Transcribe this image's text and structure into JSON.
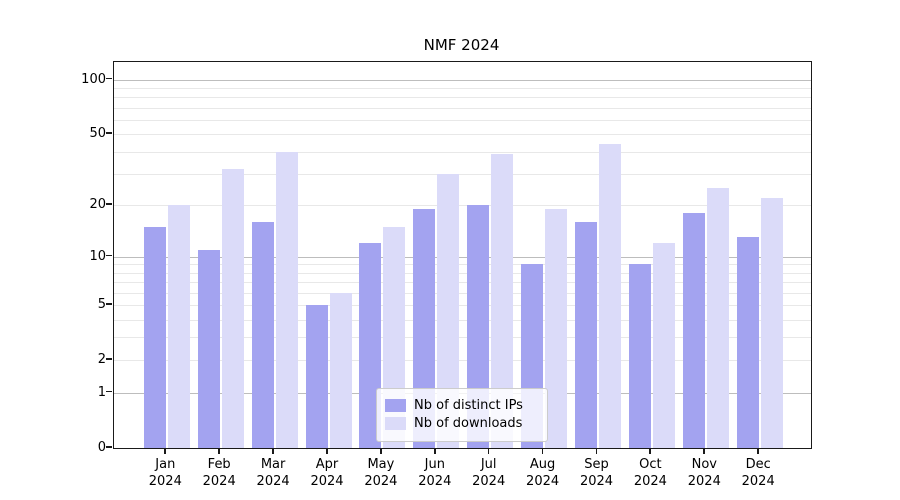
{
  "title": "NMF 2024",
  "chart_data": {
    "type": "bar",
    "title": "NMF 2024",
    "scale": "log1p",
    "categories": [
      "Jan 2024",
      "Feb 2024",
      "Mar 2024",
      "Apr 2024",
      "May 2024",
      "Jun 2024",
      "Jul 2024",
      "Aug 2024",
      "Sep 2024",
      "Oct 2024",
      "Nov 2024",
      "Dec 2024"
    ],
    "month_labels": [
      "Jan",
      "Feb",
      "Mar",
      "Apr",
      "May",
      "Jun",
      "Jul",
      "Aug",
      "Sep",
      "Oct",
      "Nov",
      "Dec"
    ],
    "year_label": "2024",
    "series": [
      {
        "name": "Nb of distinct IPs",
        "color": "#a3a3f0",
        "values": [
          15,
          11,
          16,
          5,
          12,
          19,
          20,
          9,
          16,
          9,
          18,
          13
        ]
      },
      {
        "name": "Nb of downloads",
        "color": "#dbdbf9",
        "values": [
          20,
          32,
          40,
          6,
          15,
          30,
          39,
          19,
          44,
          12,
          25,
          22
        ]
      }
    ],
    "ylim": [
      0,
      125
    ],
    "yticks": [
      100,
      50,
      20,
      10,
      5,
      2,
      1,
      0
    ],
    "grid_major": [
      1,
      10,
      100
    ],
    "grid_minor": [
      2,
      3,
      4,
      5,
      6,
      7,
      8,
      9,
      20,
      30,
      40,
      50,
      60,
      70,
      80,
      90
    ],
    "legend_position": "lower center",
    "grid": "on",
    "xlabel": "",
    "ylabel": ""
  },
  "legend": {
    "items": [
      {
        "label": "Nb of distinct IPs",
        "color": "#a3a3f0"
      },
      {
        "label": "Nb of downloads",
        "color": "#dbdbf9"
      }
    ]
  },
  "colors": {
    "spine": "#1a1a1a",
    "grid_major": "#bdbdbd",
    "grid_minor": "#e8e8e8",
    "background": "#ffffff"
  }
}
